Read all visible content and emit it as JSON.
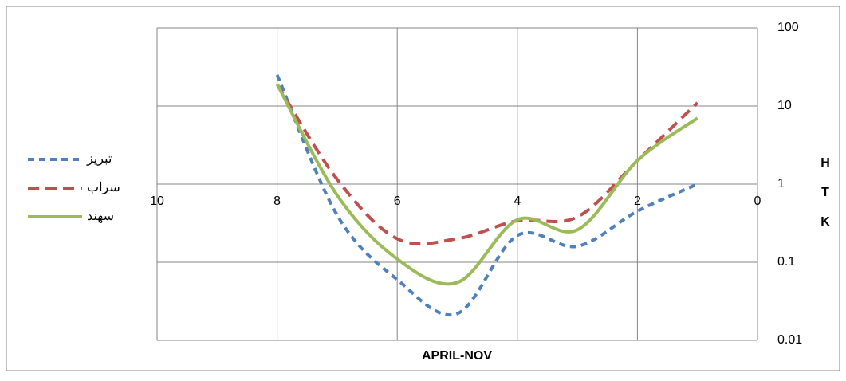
{
  "chart_data": {
    "type": "line",
    "x_label": "APRIL-NOV",
    "y_label": "HTK",
    "x": [
      8,
      7,
      6,
      5,
      4,
      3,
      2,
      1
    ],
    "xlim": [
      10,
      0
    ],
    "xticks": [
      10,
      8,
      6,
      4,
      2,
      0
    ],
    "ylim": [
      0.01,
      100
    ],
    "yticks": [
      0.01,
      0.1,
      1,
      10,
      100
    ],
    "log_y": true,
    "grid": true,
    "legend": "left",
    "smooth": true,
    "series": [
      {
        "name": "تبریز",
        "color": "#4f81bd",
        "line_style": "dashed",
        "values": [
          25,
          0.4,
          0.06,
          0.022,
          0.22,
          0.16,
          0.45,
          1
        ]
      },
      {
        "name": "سراب",
        "color": "#c0504d",
        "line_style": "dashed",
        "values": [
          19,
          1.15,
          0.2,
          0.2,
          0.34,
          0.38,
          2,
          11
        ]
      },
      {
        "name": "سهند",
        "color": "#9bbb59",
        "line_style": "solid",
        "values": [
          19,
          0.72,
          0.11,
          0.055,
          0.35,
          0.26,
          2,
          7
        ]
      }
    ]
  }
}
